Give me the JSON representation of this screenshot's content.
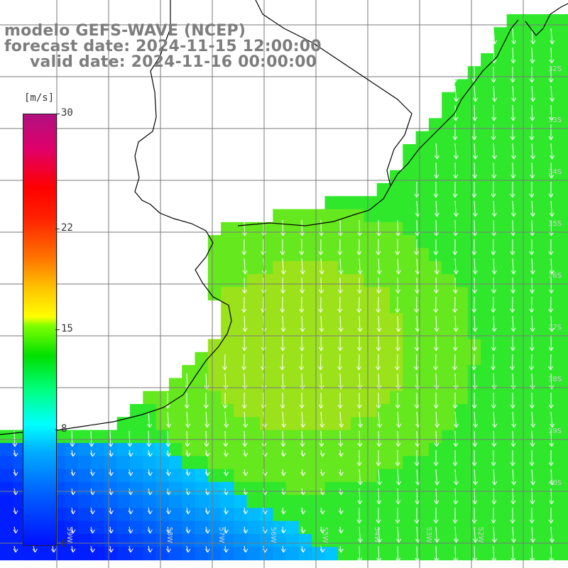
{
  "title": {
    "model": "modelo GEFS-WAVE (NCEP)",
    "forecast": "forecast date: 2024-11-15 12:00:00",
    "valid": "valid date: 2024-11-16 00:00:00"
  },
  "colorbar": {
    "units": "[m/s]",
    "ticks": [
      {
        "label": "30",
        "value": 30
      },
      {
        "label": "22",
        "value": 22
      },
      {
        "label": "15",
        "value": 15
      },
      {
        "label": "8",
        "value": 8
      },
      {
        "label": "0",
        "value": 0
      }
    ]
  },
  "axes": {
    "lat_labels": [
      "32S",
      "33S",
      "34S",
      "35S",
      "36S",
      "37S",
      "38S",
      "39S",
      "40S"
    ],
    "lon_labels": [
      "59W",
      "58W",
      "57W",
      "56W",
      "55W",
      "54W",
      "53W",
      "52W"
    ]
  },
  "colors": {
    "land": "#ffffff",
    "grid": "#7a7a7a",
    "coast": "#000000",
    "arrows": "#ffffff",
    "title_text": "#7d7d7d"
  }
}
